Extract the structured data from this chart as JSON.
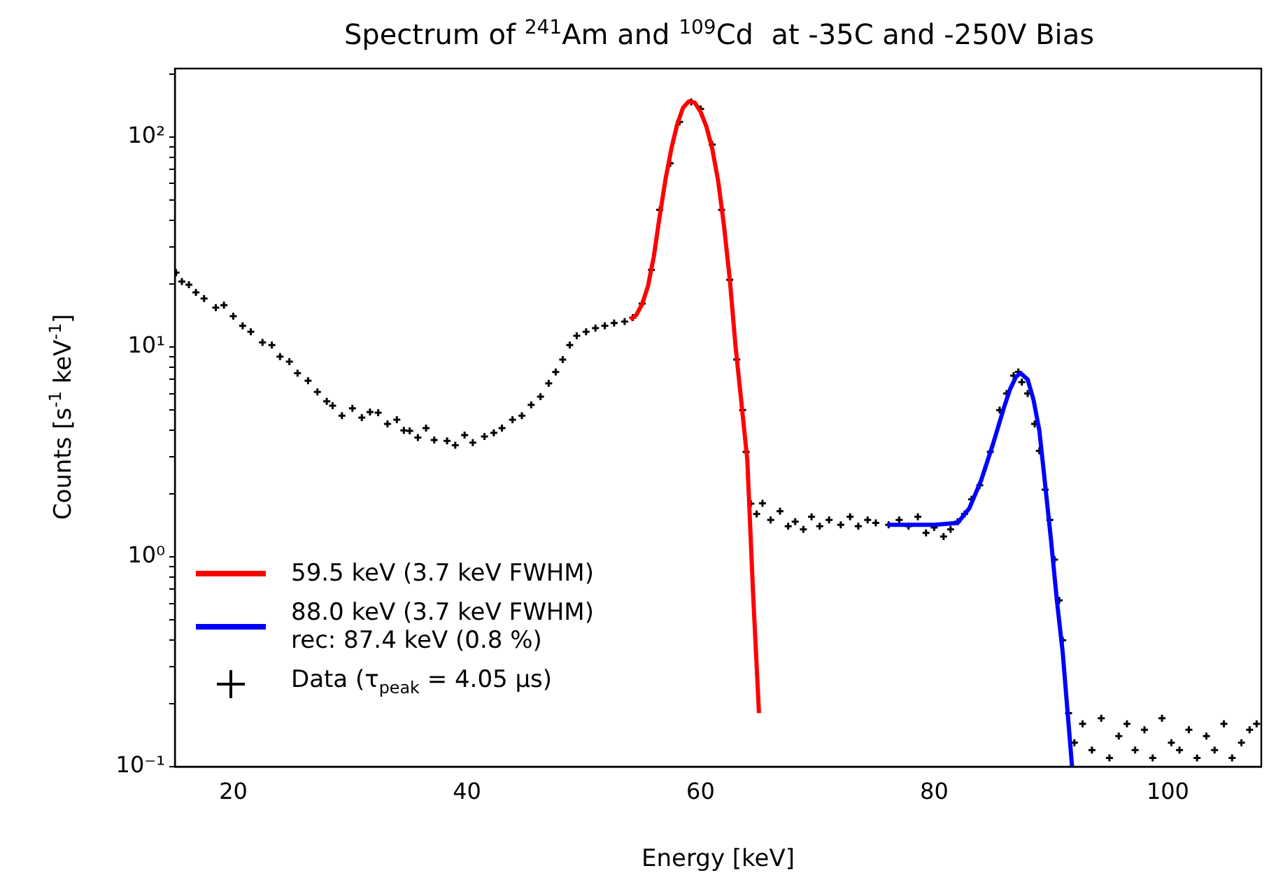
{
  "chart_data": {
    "type": "line",
    "title": "Spectrum of $^{241}$Am and $^{109}$Cd  at -35C and -250V Bias",
    "xlabel": "Energy [keV]",
    "ylabel": "Counts [s$^{-1}$ keV$^{-1}$]",
    "log": "y",
    "grid": false,
    "legend": "bottom left",
    "xlim": [
      15,
      108
    ],
    "xticks": [
      20,
      40,
      60,
      80,
      100
    ],
    "ylim": [
      0.1,
      212
    ],
    "yticks": [
      {
        "value": 0.1,
        "label": "10⁻¹"
      },
      {
        "value": 0.2,
        "label": null
      },
      {
        "value": 0.3,
        "label": null
      },
      {
        "value": 0.4,
        "label": null
      },
      {
        "value": 0.5,
        "label": null
      },
      {
        "value": 0.6,
        "label": null
      },
      {
        "value": 0.7,
        "label": null
      },
      {
        "value": 0.8,
        "label": null
      },
      {
        "value": 0.9,
        "label": null
      },
      {
        "value": 1,
        "label": "10⁰"
      },
      {
        "value": 2,
        "label": null
      },
      {
        "value": 3,
        "label": null
      },
      {
        "value": 4,
        "label": null
      },
      {
        "value": 5,
        "label": null
      },
      {
        "value": 6,
        "label": null
      },
      {
        "value": 7,
        "label": null
      },
      {
        "value": 8,
        "label": null
      },
      {
        "value": 9,
        "label": null
      },
      {
        "value": 10,
        "label": "10¹"
      },
      {
        "value": 20,
        "label": null
      },
      {
        "value": 30,
        "label": null
      },
      {
        "value": 40,
        "label": null
      },
      {
        "value": 50,
        "label": null
      },
      {
        "value": 60,
        "label": null
      },
      {
        "value": 70,
        "label": null
      },
      {
        "value": 80,
        "label": null
      },
      {
        "value": 90,
        "label": null
      },
      {
        "value": 100,
        "label": "10²"
      },
      {
        "value": 200,
        "label": null
      }
    ],
    "series": [
      {
        "name": "59.5 keV (3.7 keV FWHM)",
        "color": "#ff0000",
        "marker": "none",
        "x": [
          54,
          54.5,
          55,
          55.5,
          56,
          56.5,
          57,
          57.5,
          58,
          58.5,
          59,
          59.5,
          60,
          60.5,
          61,
          61.5,
          62,
          62.5,
          63,
          63.5,
          64,
          64.5,
          65
        ],
        "values": [
          13.5,
          14.2,
          16,
          19.5,
          27,
          42,
          63,
          88,
          115,
          138,
          148,
          146,
          132,
          112,
          88,
          62,
          38,
          21,
          10,
          5.4,
          2.9,
          0.66,
          0.18
        ]
      },
      {
        "name": "88.0 keV (3.7 keV FWHM)\nrec: 87.4 keV (0.8 %)",
        "color": "#0000ff",
        "marker": "none",
        "x": [
          76,
          78,
          80,
          82,
          83,
          84,
          85,
          86,
          86.5,
          87,
          87.4,
          88,
          88.5,
          89,
          89.5,
          90,
          90.5,
          91,
          91.5,
          91.8
        ],
        "values": [
          1.42,
          1.42,
          1.42,
          1.45,
          1.7,
          2.3,
          3.4,
          5.2,
          6.3,
          7.2,
          7.5,
          7.0,
          5.6,
          4.0,
          2.2,
          1.2,
          0.62,
          0.35,
          0.16,
          0.1
        ]
      },
      {
        "name": "Data (τ$_{peak}$ = 4.05 μs)",
        "type": "scatter",
        "color": "#000000",
        "marker": "cross",
        "x": [
          15.1,
          15.6,
          16.2,
          16.8,
          17.5,
          18.5,
          19.2,
          20,
          20.8,
          21.5,
          22.5,
          23.3,
          24,
          24.8,
          25.5,
          26.4,
          27.2,
          28,
          28.5,
          29.3,
          30.2,
          31,
          31.7,
          32.4,
          33.2,
          34,
          34.6,
          35.1,
          35.8,
          36.5,
          37.2,
          38.3,
          39,
          39.8,
          40.5,
          41.5,
          42.3,
          43,
          43.9,
          44.7,
          45.5,
          46.3,
          47,
          47.6,
          48.2,
          48.8,
          49.4,
          50.2,
          51,
          51.8,
          52.6,
          53.5,
          54.2,
          55,
          55.8,
          56.5,
          57.4,
          58.2,
          59.2,
          60,
          61,
          61.8,
          62.5,
          63.1,
          63.6,
          63.9,
          64.3,
          64.8,
          65.3,
          66,
          66.8,
          67.5,
          68.1,
          68.8,
          69.5,
          70.2,
          71,
          72,
          72.8,
          73.5,
          74.3,
          75,
          76.1,
          77,
          77.8,
          78.6,
          79.3,
          80,
          80.8,
          81.4,
          82,
          82.6,
          83.2,
          83.9,
          84.8,
          85.6,
          86.2,
          86.8,
          87.2,
          87.5,
          88,
          88.6,
          89,
          89.5,
          89.9,
          90.3,
          90.7,
          91,
          91.5,
          92,
          92.7,
          93.5,
          94.3,
          95,
          95.8,
          96.5,
          97.2,
          98,
          98.7,
          99.5,
          100.3,
          101,
          101.8,
          102.5,
          103.3,
          104,
          104.8,
          105.5,
          106.3,
          107,
          107.6
        ],
        "values": [
          22.6,
          20.5,
          19.8,
          18.2,
          17,
          15.4,
          15.8,
          14,
          12.6,
          11.8,
          10.5,
          10.2,
          9,
          8.5,
          7.5,
          6.9,
          6.1,
          5.5,
          5.25,
          4.7,
          5.1,
          4.6,
          4.9,
          4.86,
          4.3,
          4.5,
          4,
          3.98,
          3.7,
          4.1,
          3.6,
          3.57,
          3.4,
          3.8,
          3.5,
          3.74,
          3.9,
          4.1,
          4.5,
          4.7,
          5.3,
          5.8,
          6.7,
          7.6,
          8.7,
          10.2,
          11.3,
          11.8,
          12.3,
          12.6,
          13,
          13.2,
          13.8,
          16.1,
          23.3,
          45,
          75,
          118,
          147,
          136,
          92,
          45,
          20.9,
          8.7,
          5,
          3.16,
          1.79,
          1.6,
          1.8,
          1.5,
          1.65,
          1.4,
          1.47,
          1.35,
          1.55,
          1.4,
          1.5,
          1.42,
          1.55,
          1.4,
          1.5,
          1.45,
          1.42,
          1.5,
          1.4,
          1.55,
          1.3,
          1.38,
          1.25,
          1.35,
          1.47,
          1.6,
          1.88,
          2.19,
          3.16,
          5,
          6,
          7.3,
          7.6,
          6.8,
          6,
          4.3,
          3.2,
          2.09,
          1.5,
          0.97,
          0.62,
          0.4,
          0.18,
          0.13,
          0.16,
          0.12,
          0.17,
          0.11,
          0.14,
          0.16,
          0.12,
          0.15,
          0.11,
          0.17,
          0.13,
          0.12,
          0.15,
          0.11,
          0.14,
          0.12,
          0.16,
          0.11,
          0.13,
          0.15,
          0.16
        ]
      }
    ]
  }
}
